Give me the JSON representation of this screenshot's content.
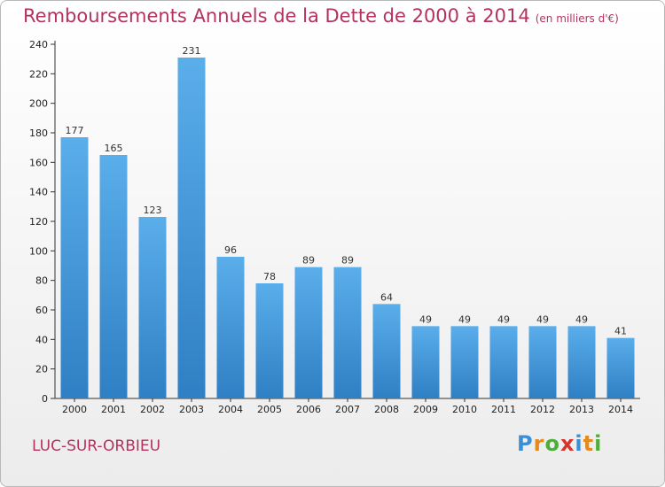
{
  "header": {
    "title": "Remboursements Annuels de la Dette de 2000 à 2014",
    "subtitle": "(en milliers d'€)"
  },
  "footer": {
    "place": "LUC-SUR-ORBIEU",
    "logo_letters": [
      "P",
      "r",
      "o",
      "x",
      "i",
      "t",
      "i"
    ]
  },
  "chart_data": {
    "type": "bar",
    "title": "Remboursements Annuels de la Dette de 2000 à 2014",
    "subtitle": "(en milliers d'€)",
    "xlabel": "",
    "ylabel": "",
    "categories": [
      "2000",
      "2001",
      "2002",
      "2003",
      "2004",
      "2005",
      "2006",
      "2007",
      "2008",
      "2009",
      "2010",
      "2011",
      "2012",
      "2013",
      "2014"
    ],
    "values": [
      177,
      165,
      123,
      231,
      96,
      78,
      89,
      89,
      64,
      49,
      49,
      49,
      49,
      49,
      41
    ],
    "ylim": [
      0,
      240
    ],
    "yticks": [
      0,
      20,
      40,
      60,
      80,
      100,
      120,
      140,
      160,
      180,
      200,
      220,
      240
    ],
    "grid": false,
    "bar_color": "#3d9ae2"
  }
}
